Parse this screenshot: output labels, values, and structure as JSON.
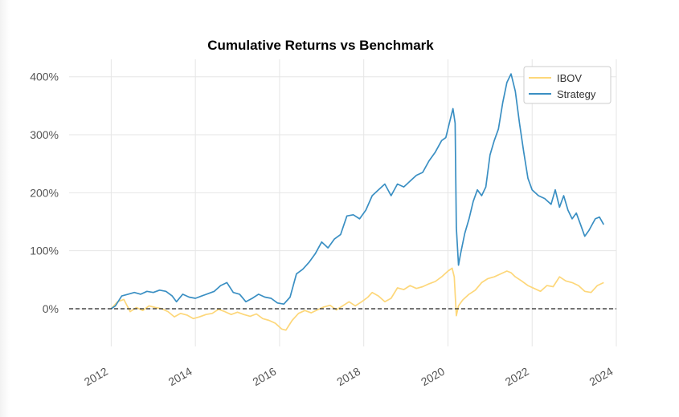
{
  "chart_data": {
    "type": "line",
    "title": "Cumulative Returns vs Benchmark",
    "xlabel": "",
    "ylabel": "",
    "xlim": [
      2011.0,
      2024.0
    ],
    "ylim": [
      -0.65,
      4.3
    ],
    "x_ticks": [
      2012,
      2014,
      2016,
      2018,
      2020,
      2022,
      2024
    ],
    "y_ticks": [
      0,
      1,
      2,
      3,
      4
    ],
    "y_tick_labels": [
      "0%",
      "100%",
      "200%",
      "300%",
      "400%"
    ],
    "x_tick_labels": [
      "2012",
      "2014",
      "2016",
      "2018",
      "2020",
      "2022",
      "2024"
    ],
    "grid": true,
    "legend_position": "top-right",
    "baseline": 0,
    "series": [
      {
        "name": "IBOV",
        "color": "#fdd77a",
        "x": [
          2012.0,
          2012.15,
          2012.3,
          2012.45,
          2012.6,
          2012.75,
          2012.9,
          2013.05,
          2013.2,
          2013.35,
          2013.5,
          2013.65,
          2013.8,
          2013.95,
          2014.1,
          2014.25,
          2014.4,
          2014.55,
          2014.7,
          2014.85,
          2015.0,
          2015.15,
          2015.3,
          2015.45,
          2015.6,
          2015.75,
          2015.9,
          2016.05,
          2016.15,
          2016.3,
          2016.45,
          2016.6,
          2016.75,
          2016.9,
          2017.05,
          2017.2,
          2017.35,
          2017.5,
          2017.65,
          2017.8,
          2017.95,
          2018.1,
          2018.2,
          2018.35,
          2018.5,
          2018.65,
          2018.8,
          2018.95,
          2019.1,
          2019.25,
          2019.4,
          2019.55,
          2019.7,
          2019.85,
          2020.0,
          2020.1,
          2020.15,
          2020.2,
          2020.25,
          2020.35,
          2020.5,
          2020.65,
          2020.8,
          2020.95,
          2021.1,
          2021.25,
          2021.4,
          2021.5,
          2021.6,
          2021.75,
          2021.9,
          2022.05,
          2022.2,
          2022.35,
          2022.5,
          2022.65,
          2022.8,
          2022.95,
          2023.1,
          2023.25,
          2023.4,
          2023.55,
          2023.7
        ],
        "values": [
          0.0,
          0.12,
          0.16,
          -0.05,
          0.02,
          -0.03,
          0.05,
          0.02,
          0.0,
          -0.05,
          -0.14,
          -0.08,
          -0.11,
          -0.17,
          -0.14,
          -0.1,
          -0.08,
          -0.01,
          -0.05,
          -0.1,
          -0.06,
          -0.1,
          -0.13,
          -0.09,
          -0.17,
          -0.2,
          -0.25,
          -0.35,
          -0.37,
          -0.2,
          -0.08,
          -0.03,
          -0.07,
          -0.02,
          0.03,
          0.06,
          -0.02,
          0.05,
          0.12,
          0.05,
          0.12,
          0.2,
          0.28,
          0.22,
          0.12,
          0.18,
          0.36,
          0.33,
          0.4,
          0.35,
          0.38,
          0.43,
          0.47,
          0.55,
          0.65,
          0.7,
          0.55,
          -0.12,
          0.05,
          0.15,
          0.25,
          0.32,
          0.45,
          0.52,
          0.55,
          0.6,
          0.65,
          0.62,
          0.55,
          0.48,
          0.4,
          0.35,
          0.3,
          0.4,
          0.38,
          0.55,
          0.48,
          0.45,
          0.4,
          0.3,
          0.28,
          0.4,
          0.45
        ]
      },
      {
        "name": "Strategy",
        "color": "#3a8fc3",
        "x": [
          2012.0,
          2012.1,
          2012.25,
          2012.4,
          2012.55,
          2012.7,
          2012.85,
          2013.0,
          2013.15,
          2013.3,
          2013.45,
          2013.55,
          2013.7,
          2013.85,
          2014.0,
          2014.15,
          2014.3,
          2014.45,
          2014.6,
          2014.75,
          2014.9,
          2015.05,
          2015.2,
          2015.35,
          2015.5,
          2015.65,
          2015.8,
          2015.95,
          2016.1,
          2016.25,
          2016.4,
          2016.55,
          2016.7,
          2016.85,
          2017.0,
          2017.15,
          2017.3,
          2017.45,
          2017.6,
          2017.75,
          2017.9,
          2018.05,
          2018.2,
          2018.35,
          2018.5,
          2018.65,
          2018.8,
          2018.95,
          2019.1,
          2019.25,
          2019.4,
          2019.55,
          2019.7,
          2019.85,
          2019.95,
          2020.05,
          2020.12,
          2020.17,
          2020.2,
          2020.25,
          2020.3,
          2020.4,
          2020.5,
          2020.6,
          2020.7,
          2020.8,
          2020.9,
          2021.0,
          2021.1,
          2021.2,
          2021.3,
          2021.4,
          2021.5,
          2021.6,
          2021.7,
          2021.8,
          2021.9,
          2022.0,
          2022.15,
          2022.3,
          2022.45,
          2022.55,
          2022.65,
          2022.75,
          2022.85,
          2022.95,
          2023.05,
          2023.15,
          2023.25,
          2023.35,
          2023.5,
          2023.6,
          2023.7
        ],
        "values": [
          0.0,
          0.05,
          0.22,
          0.25,
          0.28,
          0.25,
          0.3,
          0.28,
          0.32,
          0.3,
          0.22,
          0.12,
          0.25,
          0.2,
          0.18,
          0.22,
          0.26,
          0.3,
          0.4,
          0.45,
          0.28,
          0.25,
          0.12,
          0.18,
          0.25,
          0.2,
          0.18,
          0.1,
          0.08,
          0.2,
          0.6,
          0.68,
          0.8,
          0.95,
          1.15,
          1.05,
          1.2,
          1.28,
          1.6,
          1.62,
          1.55,
          1.7,
          1.95,
          2.05,
          2.15,
          1.95,
          2.15,
          2.1,
          2.2,
          2.3,
          2.35,
          2.55,
          2.7,
          2.9,
          2.95,
          3.25,
          3.45,
          3.2,
          1.4,
          0.75,
          0.95,
          1.3,
          1.55,
          1.85,
          2.05,
          1.95,
          2.1,
          2.65,
          2.9,
          3.1,
          3.55,
          3.9,
          4.05,
          3.75,
          3.2,
          2.7,
          2.25,
          2.05,
          1.95,
          1.9,
          1.8,
          2.05,
          1.75,
          1.95,
          1.7,
          1.55,
          1.65,
          1.45,
          1.25,
          1.35,
          1.55,
          1.58,
          1.45
        ]
      }
    ]
  }
}
